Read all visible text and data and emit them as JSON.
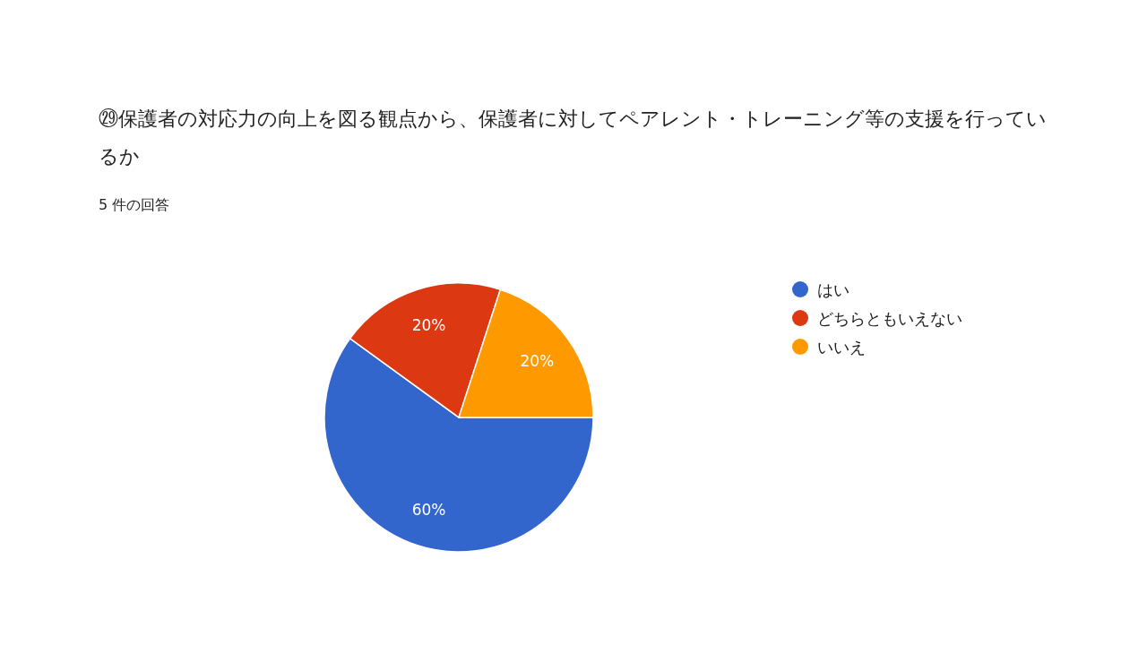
{
  "chart_data": {
    "type": "pie",
    "title": "㉙保護者の対応力の向上を図る観点から、保護者に対してペアレント・トレーニング等の支援を行っているか",
    "subtitle": "5 件の回答",
    "categories": [
      "はい",
      "どちらともいえない",
      "いいえ"
    ],
    "values": [
      60,
      20,
      20
    ],
    "colors": [
      "#3366cc",
      "#dc3912",
      "#ff9900"
    ],
    "value_labels": [
      "60%",
      "20%",
      "20%"
    ],
    "legend": "right"
  }
}
